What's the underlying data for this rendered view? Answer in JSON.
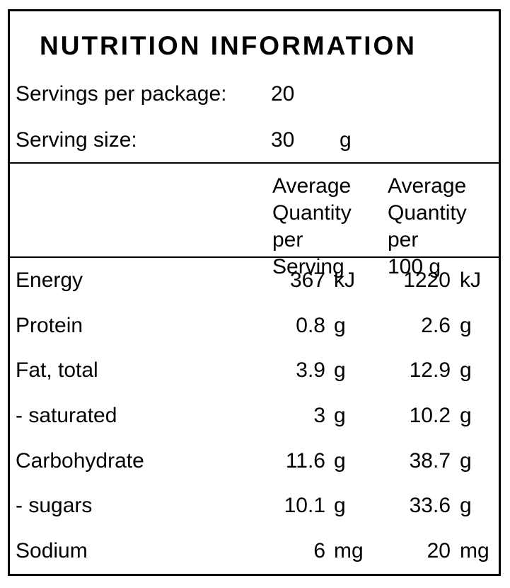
{
  "title": "NUTRITION INFORMATION",
  "serving_info": {
    "servings_per_package": {
      "label": "Servings per package:",
      "value": "20"
    },
    "serving_size": {
      "label": "Serving size:",
      "value": "30",
      "unit": "g"
    }
  },
  "table": {
    "column_headers": {
      "per_serving": "Average\nQuantity per\nServing",
      "per_100g": "Average\nQuantity per\n100 g"
    },
    "rows": [
      {
        "name": "Energy",
        "per_serving": {
          "value": "367",
          "unit": "kJ"
        },
        "per_100g": {
          "value": "1220",
          "unit": "kJ"
        }
      },
      {
        "name": "Protein",
        "per_serving": {
          "value": "0.8",
          "unit": "g"
        },
        "per_100g": {
          "value": "2.6",
          "unit": "g"
        }
      },
      {
        "name": "Fat, total",
        "per_serving": {
          "value": "3.9",
          "unit": "g"
        },
        "per_100g": {
          "value": "12.9",
          "unit": "g"
        }
      },
      {
        "name": "- saturated",
        "per_serving": {
          "value": "3",
          "unit": "g"
        },
        "per_100g": {
          "value": "10.2",
          "unit": "g"
        }
      },
      {
        "name": "Carbohydrate",
        "per_serving": {
          "value": "11.6",
          "unit": "g"
        },
        "per_100g": {
          "value": "38.7",
          "unit": "g"
        }
      },
      {
        "name": "- sugars",
        "per_serving": {
          "value": "10.1",
          "unit": "g"
        },
        "per_100g": {
          "value": "33.6",
          "unit": "g"
        }
      },
      {
        "name": "Sodium",
        "per_serving": {
          "value": "6",
          "unit": "mg"
        },
        "per_100g": {
          "value": "20",
          "unit": "mg"
        }
      }
    ]
  },
  "colors": {
    "text": "#000000",
    "border": "#000000",
    "background": "#ffffff"
  }
}
